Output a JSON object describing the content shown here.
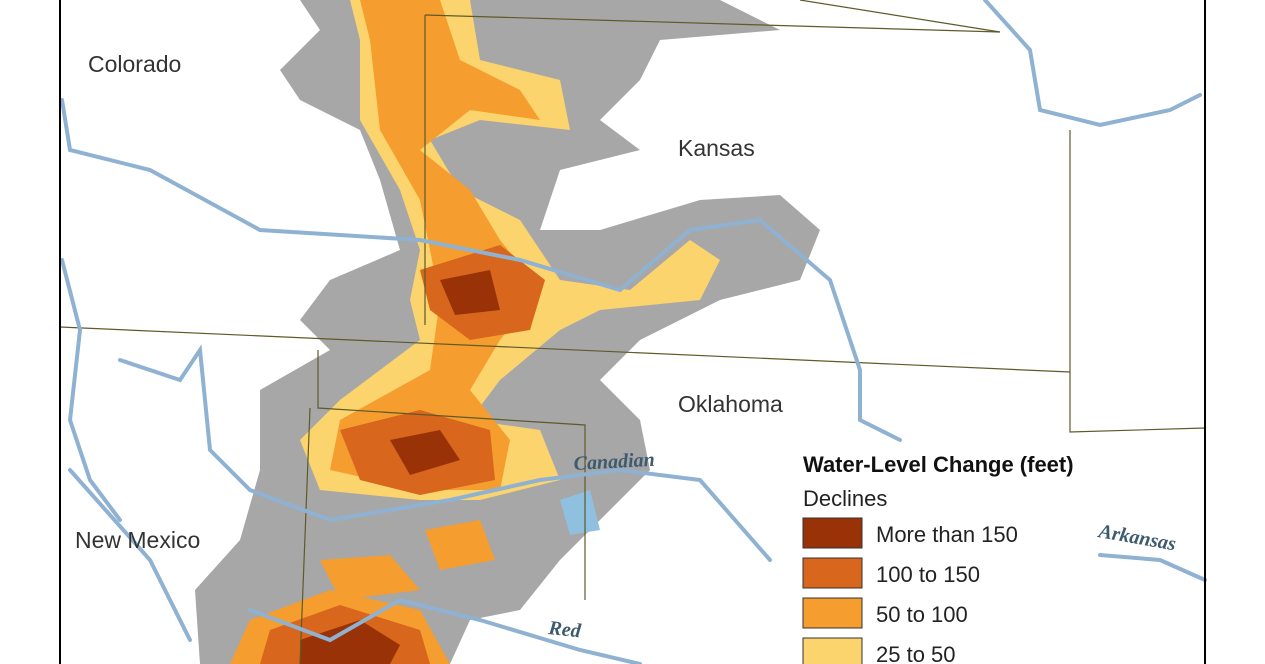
{
  "states": [
    "Colorado",
    "Kansas",
    "Oklahoma",
    "New Mexico"
  ],
  "rivers": [
    "Canadian",
    "Arkansas",
    "Red"
  ],
  "legend": {
    "title": "Water-Level Change (feet)",
    "subtitle": "Declines",
    "items": [
      {
        "label": "More than 150",
        "color": "#9a3208"
      },
      {
        "label": "100 to 150",
        "color": "#d8661c"
      },
      {
        "label": "50 to 100",
        "color": "#f59d2f"
      },
      {
        "label": "25 to 50",
        "color": "#fcd46e"
      }
    ]
  }
}
